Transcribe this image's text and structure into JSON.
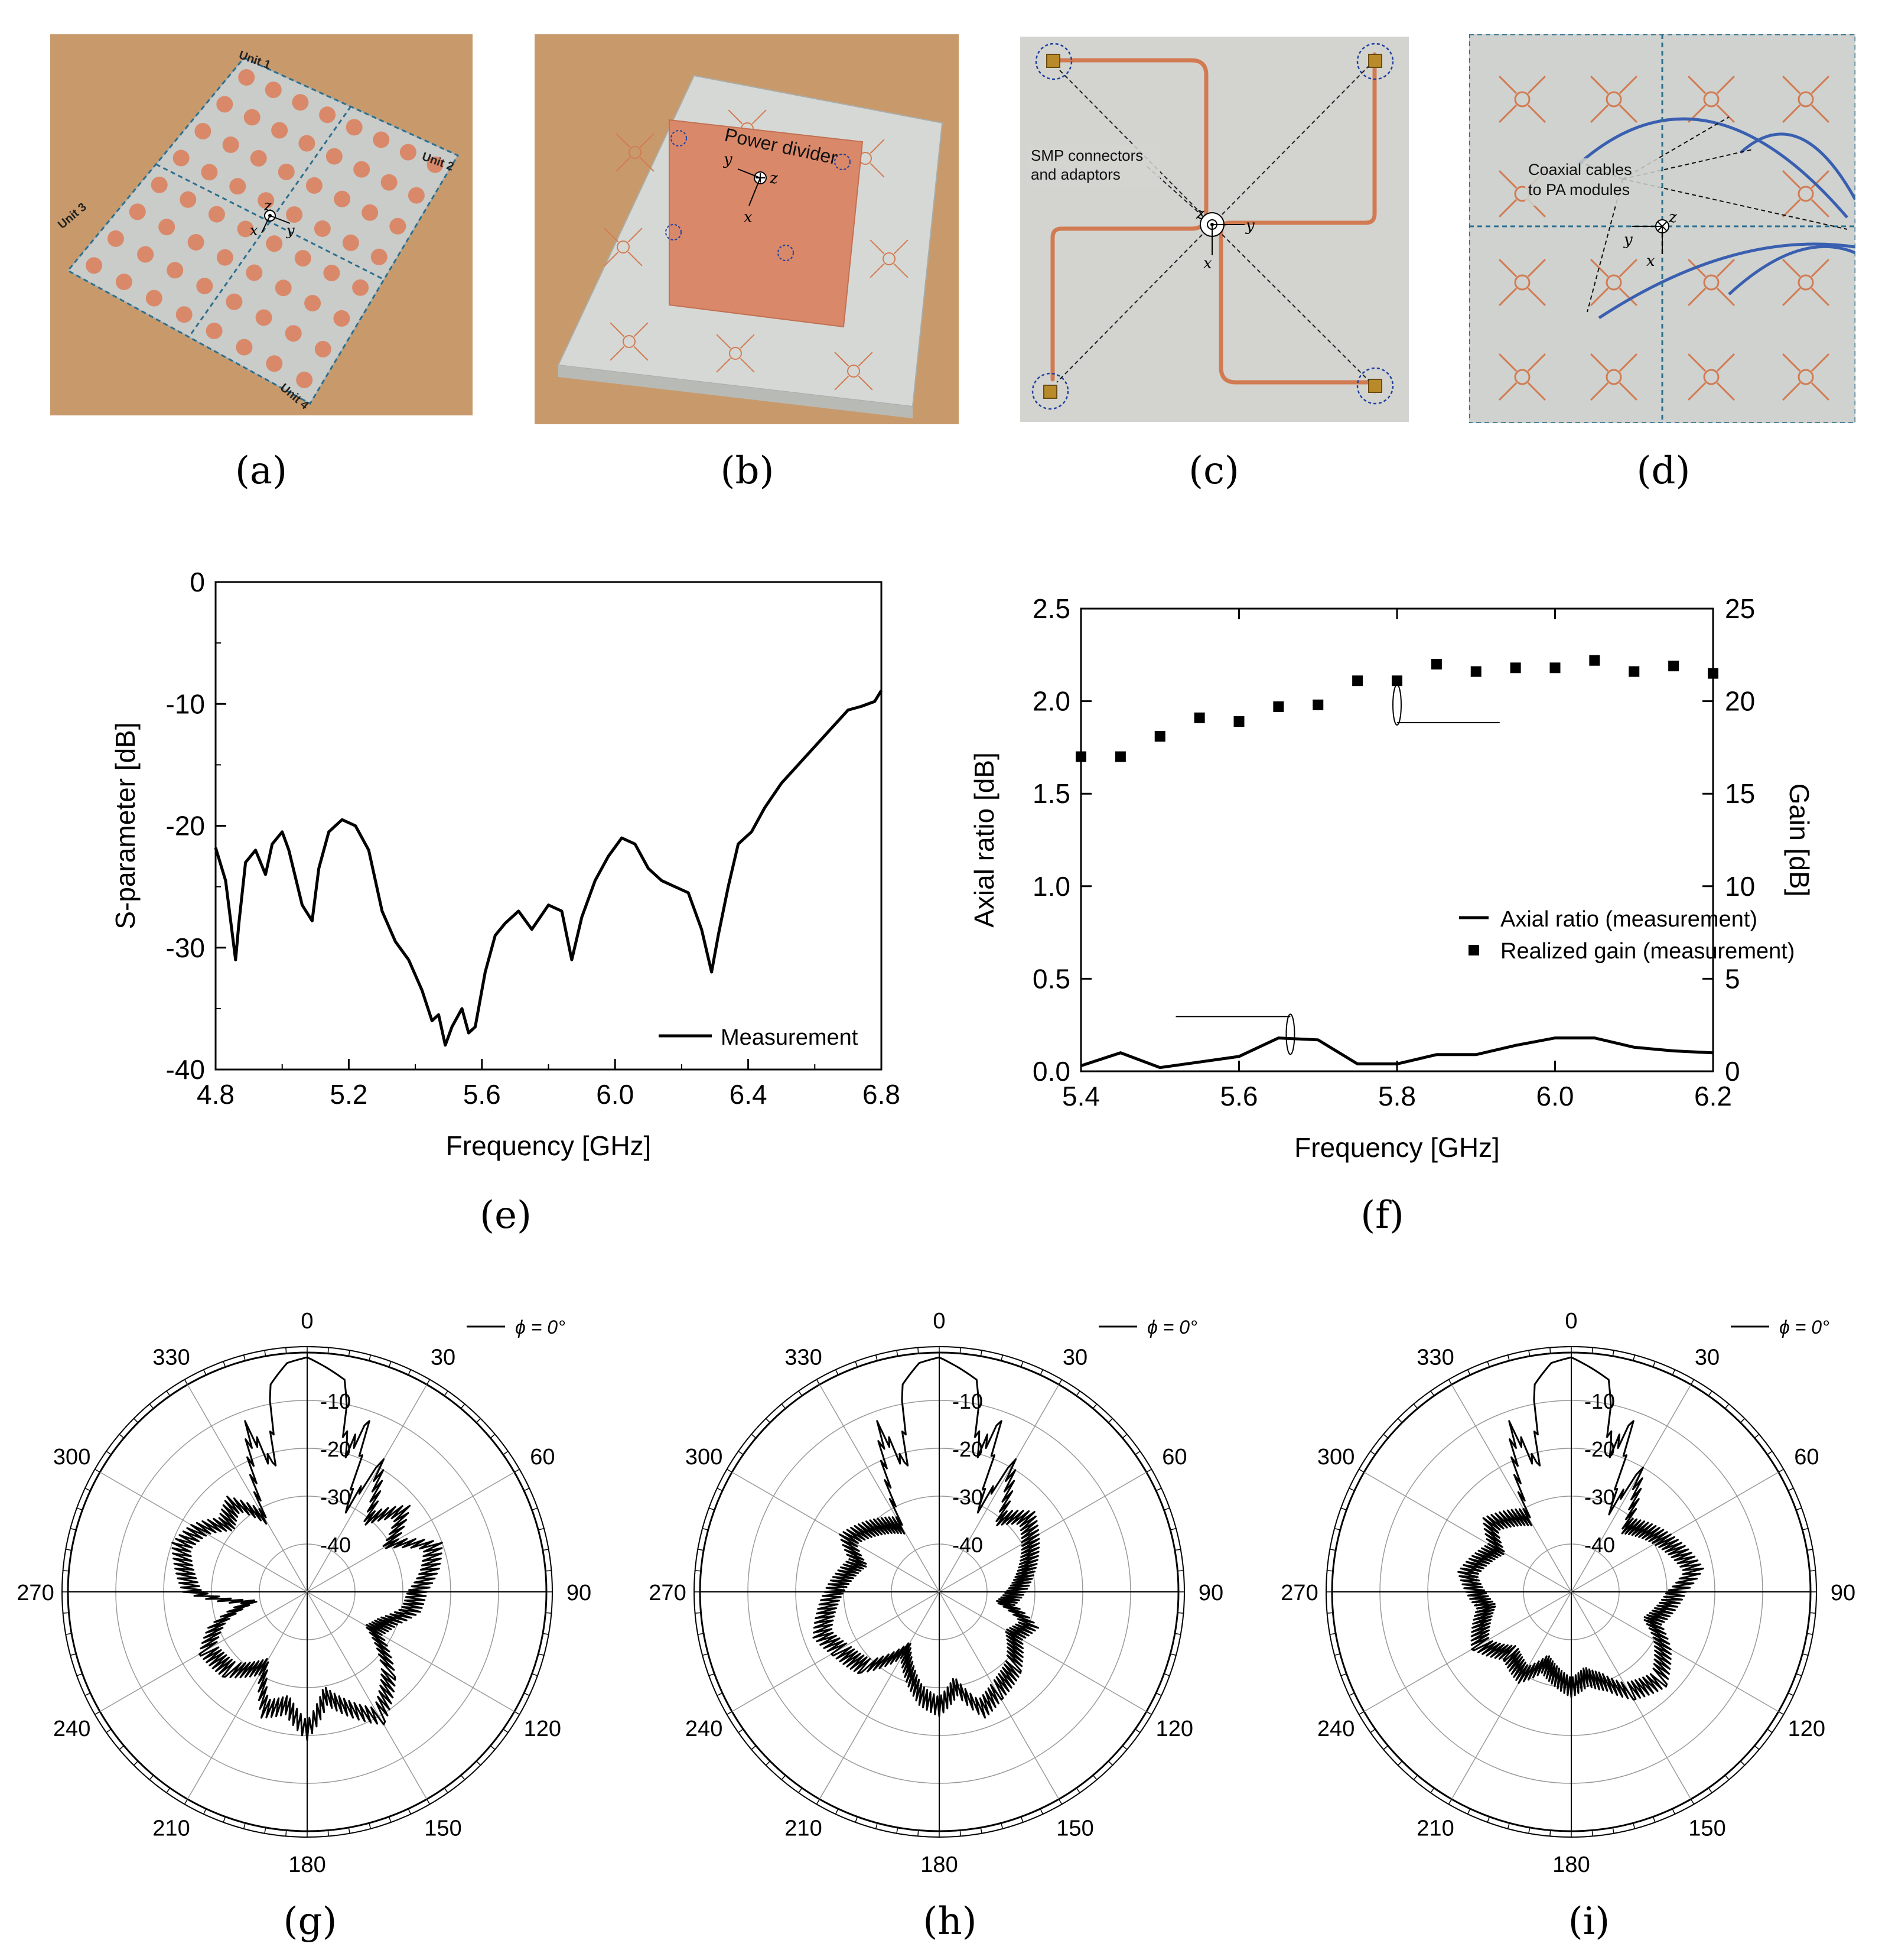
{
  "panel_labels": [
    "(a)",
    "(b)",
    "(c)",
    "(d)",
    "(e)",
    "(f)",
    "(g)",
    "(h)",
    "(i)"
  ],
  "photos": {
    "a": {
      "units": [
        "Unit 1",
        "Unit 2",
        "Unit 3",
        "Unit 4"
      ],
      "axis_z": "z",
      "axis_x": "x",
      "axis_y": "y"
    },
    "b": {
      "label": "Power divider",
      "axis_y": "y",
      "axis_z": "z",
      "axis_x": "x"
    },
    "c": {
      "annotation_line1": "SMP connectors",
      "annotation_line2": "and adaptors",
      "axis_z": "z",
      "axis_y": "y",
      "axis_x": "x"
    },
    "d": {
      "annotation_line1": "Coaxial cables",
      "annotation_line2": "to PA modules",
      "axis_y": "y",
      "axis_z": "z",
      "axis_x": "x"
    }
  },
  "colors": {
    "copper": "#d9896a",
    "board": "#c9ccc9",
    "wood": "#c89a6b",
    "trace": "#d27b52",
    "cable": "#3a5fb0",
    "dash": "#2e6f8e"
  },
  "chart_data": [
    {
      "type": "line",
      "panel": "e",
      "xlabel": "Frequency [GHz]",
      "ylabel": "S-parameter [dB]",
      "xlim": [
        4.8,
        6.8
      ],
      "ylim": [
        -40,
        0
      ],
      "xticks": [
        "4.8",
        "5.2",
        "5.6",
        "6.0",
        "6.4",
        "6.8"
      ],
      "yticks": [
        "0",
        "-10",
        "-20",
        "-30",
        "-40"
      ],
      "legend_location": "bottom-right",
      "series": [
        {
          "name": "Measurement",
          "x": [
            4.8,
            4.83,
            4.86,
            4.87,
            4.89,
            4.92,
            4.95,
            4.97,
            5.0,
            5.02,
            5.06,
            5.09,
            5.11,
            5.14,
            5.18,
            5.22,
            5.26,
            5.3,
            5.34,
            5.38,
            5.42,
            5.45,
            5.47,
            5.49,
            5.51,
            5.54,
            5.56,
            5.58,
            5.61,
            5.64,
            5.67,
            5.71,
            5.75,
            5.8,
            5.84,
            5.87,
            5.9,
            5.94,
            5.98,
            6.02,
            6.06,
            6.1,
            6.14,
            6.18,
            6.22,
            6.26,
            6.29,
            6.31,
            6.34,
            6.37,
            6.41,
            6.45,
            6.5,
            6.55,
            6.6,
            6.65,
            6.7,
            6.74,
            6.78,
            6.8
          ],
          "y": [
            -21.8,
            -24.5,
            -31.0,
            -28.0,
            -23.0,
            -22.0,
            -24.0,
            -21.5,
            -20.5,
            -22.0,
            -26.5,
            -27.8,
            -23.5,
            -20.5,
            -19.5,
            -20.0,
            -22.0,
            -27.0,
            -29.5,
            -31.0,
            -33.5,
            -36.0,
            -35.5,
            -38.0,
            -36.5,
            -35.0,
            -37.0,
            -36.5,
            -32.0,
            -29.0,
            -28.0,
            -27.0,
            -28.5,
            -26.5,
            -27.0,
            -31.0,
            -27.5,
            -24.5,
            -22.5,
            -21.0,
            -21.5,
            -23.5,
            -24.5,
            -25.0,
            -25.5,
            -28.5,
            -32.0,
            -29.0,
            -25.0,
            -21.5,
            -20.5,
            -18.5,
            -16.5,
            -15.0,
            -13.5,
            -12.0,
            -10.5,
            -10.2,
            -9.8,
            -8.9
          ]
        }
      ]
    },
    {
      "type": "line+scatter",
      "panel": "f",
      "xlabel": "Frequency [GHz]",
      "ylabel": "Axial ratio [dB]",
      "ylabel_right": "Gain [dB]",
      "xlim": [
        5.4,
        6.2
      ],
      "ylim": [
        0.0,
        2.5
      ],
      "ylim_right": [
        0,
        25
      ],
      "xticks": [
        "5.4",
        "5.6",
        "5.8",
        "6.0",
        "6.2"
      ],
      "yticks": [
        "0.0",
        "0.5",
        "1.0",
        "1.5",
        "2.0",
        "2.5"
      ],
      "yticks_right": [
        "0",
        "5",
        "10",
        "15",
        "20",
        "25"
      ],
      "legend_location": "lower-right",
      "series": [
        {
          "name": "Axial ratio (measurement)",
          "axis": "left",
          "x": [
            5.4,
            5.45,
            5.5,
            5.55,
            5.6,
            5.65,
            5.7,
            5.75,
            5.8,
            5.85,
            5.9,
            5.95,
            6.0,
            6.05,
            6.1,
            6.15,
            6.2
          ],
          "y": [
            0.03,
            0.1,
            0.02,
            0.05,
            0.08,
            0.18,
            0.17,
            0.04,
            0.04,
            0.09,
            0.09,
            0.14,
            0.18,
            0.18,
            0.13,
            0.11,
            0.1
          ]
        },
        {
          "name": "Realized gain (measurement)",
          "axis": "right",
          "x": [
            5.4,
            5.45,
            5.5,
            5.55,
            5.6,
            5.65,
            5.7,
            5.75,
            5.8,
            5.85,
            5.9,
            5.95,
            6.0,
            6.05,
            6.1,
            6.15,
            6.2
          ],
          "y": [
            17.0,
            17.0,
            18.1,
            19.1,
            18.9,
            19.7,
            19.8,
            21.1,
            21.1,
            22.0,
            21.6,
            21.8,
            21.8,
            22.2,
            21.6,
            21.9,
            21.5
          ]
        }
      ]
    },
    {
      "type": "polar",
      "panel": "g",
      "legend": "ϕ = 0°",
      "rlim": [
        -50,
        0
      ],
      "rticks": [
        "-10",
        "-20",
        "-30",
        "-40"
      ],
      "angle_ticks": [
        "0",
        "30",
        "60",
        "90",
        "120",
        "150",
        "180",
        "210",
        "240",
        "270",
        "300",
        "330"
      ],
      "series": [
        {
          "name": "ϕ = 0°",
          "theta": [
            0,
            10,
            15,
            20,
            25,
            30,
            40,
            50,
            60,
            70,
            80,
            90,
            100,
            110,
            120,
            135,
            150,
            160,
            170,
            180,
            190,
            200,
            210,
            225,
            240,
            250,
            260,
            270,
            280,
            290,
            300,
            310,
            320,
            330,
            340,
            345,
            350,
            355
          ],
          "r": [
            -1,
            -5,
            -18,
            -12,
            -30,
            -18,
            -28,
            -22,
            -28,
            -20,
            -22,
            -25,
            -26,
            -30,
            -32,
            -24,
            -18,
            -22,
            -26,
            -19,
            -24,
            -22,
            -30,
            -25,
            -24,
            -28,
            -36,
            -24,
            -22,
            -20,
            -22,
            -26,
            -24,
            -30,
            -12,
            -22,
            -6,
            -2
          ]
        }
      ]
    },
    {
      "type": "polar",
      "panel": "h",
      "legend": "ϕ = 0°",
      "rlim": [
        -50,
        0
      ],
      "rticks": [
        "-10",
        "-20",
        "-30",
        "-40"
      ],
      "angle_ticks": [
        "0",
        "30",
        "60",
        "90",
        "120",
        "150",
        "180",
        "210",
        "240",
        "270",
        "300",
        "330"
      ],
      "series": [
        {
          "name": "ϕ = 0°",
          "theta": [
            0,
            10,
            15,
            20,
            25,
            30,
            40,
            50,
            60,
            70,
            80,
            90,
            100,
            110,
            120,
            135,
            150,
            160,
            170,
            180,
            190,
            200,
            210,
            225,
            240,
            250,
            260,
            270,
            280,
            290,
            300,
            310,
            320,
            330,
            340,
            345,
            350,
            355
          ],
          "r": [
            -1,
            -5,
            -18,
            -12,
            -30,
            -18,
            -28,
            -24,
            -26,
            -28,
            -30,
            -32,
            -34,
            -28,
            -30,
            -26,
            -24,
            -22,
            -28,
            -24,
            -26,
            -30,
            -34,
            -26,
            -24,
            -22,
            -24,
            -26,
            -28,
            -30,
            -26,
            -28,
            -30,
            -32,
            -12,
            -22,
            -6,
            -2
          ]
        }
      ]
    },
    {
      "type": "polar",
      "panel": "i",
      "legend": "ϕ = 0°",
      "rlim": [
        -50,
        0
      ],
      "rticks": [
        "-10",
        "-20",
        "-30",
        "-40"
      ],
      "angle_ticks": [
        "0",
        "30",
        "60",
        "90",
        "120",
        "150",
        "180",
        "210",
        "240",
        "270",
        "300",
        "330"
      ],
      "series": [
        {
          "name": "ϕ = 0°",
          "theta": [
            0,
            10,
            15,
            20,
            25,
            30,
            40,
            50,
            60,
            70,
            80,
            90,
            100,
            110,
            120,
            135,
            150,
            160,
            170,
            180,
            190,
            200,
            210,
            225,
            240,
            250,
            260,
            270,
            280,
            290,
            300,
            310,
            320,
            330,
            340,
            345,
            350,
            355
          ],
          "r": [
            -1,
            -5,
            -18,
            -12,
            -30,
            -20,
            -30,
            -28,
            -26,
            -24,
            -22,
            -26,
            -28,
            -30,
            -26,
            -22,
            -24,
            -28,
            -30,
            -28,
            -30,
            -32,
            -28,
            -30,
            -26,
            -28,
            -30,
            -28,
            -26,
            -28,
            -30,
            -26,
            -28,
            -30,
            -12,
            -22,
            -6,
            -2
          ]
        }
      ]
    }
  ]
}
